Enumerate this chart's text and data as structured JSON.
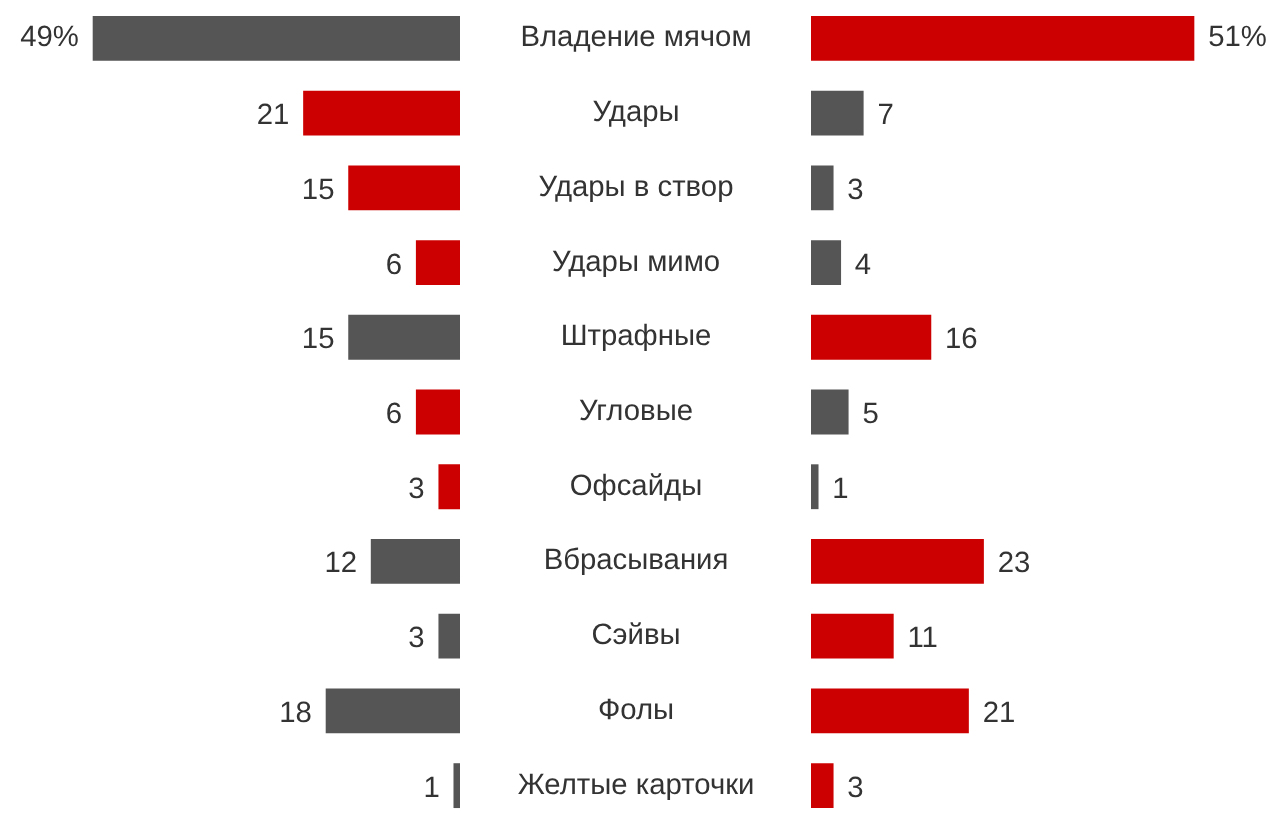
{
  "chart_data": [
    {
      "type": "bar",
      "orientation": "horizontal",
      "data_labels": true,
      "categories": [
        "Владение мячом",
        "Удары",
        "Удары в створ",
        "Удары мимо",
        "Штрафные",
        "Угловые",
        "Офсайды",
        "Вбрасывания",
        "Сэйвы",
        "Фолы",
        "Желтые карточки"
      ],
      "series": [
        {
          "values": [
            49,
            21,
            15,
            6,
            15,
            6,
            3,
            12,
            3,
            18,
            1
          ],
          "value_labels": [
            "49%",
            "21",
            "15",
            "6",
            "15",
            "6",
            "3",
            "12",
            "3",
            "18",
            "1"
          ],
          "colors": [
            "#555555",
            "#cc0000",
            "#cc0000",
            "#cc0000",
            "#555555",
            "#cc0000",
            "#cc0000",
            "#555555",
            "#555555",
            "#555555",
            "#555555"
          ]
        }
      ]
    },
    {
      "type": "bar",
      "orientation": "horizontal",
      "data_labels": true,
      "categories": [
        null,
        null,
        null,
        null,
        null,
        null,
        null,
        null,
        null,
        null,
        null
      ],
      "series": [
        {
          "values": [
            51,
            7,
            3,
            4,
            16,
            5,
            1,
            23,
            11,
            21,
            3
          ],
          "value_labels": [
            "51%",
            "7",
            "3",
            "4",
            "16",
            "5",
            "1",
            "23",
            "11",
            "21",
            "3"
          ],
          "colors": [
            "#cc0000",
            "#555555",
            "#555555",
            "#555555",
            "#cc0000",
            "#555555",
            "#555555",
            "#cc0000",
            "#cc0000",
            "#cc0000",
            "#cc0000"
          ]
        }
      ]
    }
  ]
}
